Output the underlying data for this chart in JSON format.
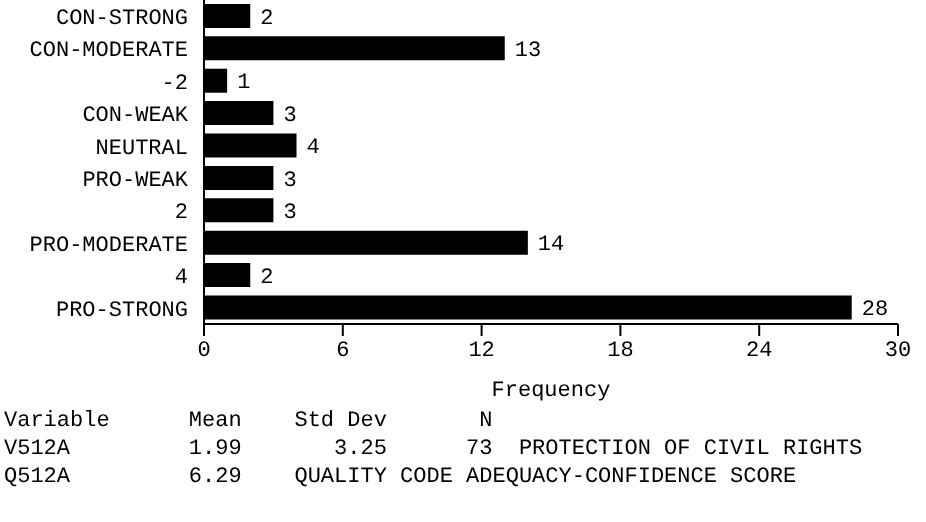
{
  "chart_data": {
    "type": "bar",
    "orientation": "horizontal",
    "categories": [
      "CON-STRONG",
      "CON-MODERATE",
      "-2",
      "CON-WEAK",
      "NEUTRAL",
      "PRO-WEAK",
      "2",
      "PRO-MODERATE",
      "4",
      "PRO-STRONG"
    ],
    "values": [
      2,
      13,
      1,
      3,
      4,
      3,
      3,
      14,
      2,
      28
    ],
    "color": "#000000",
    "xlim": [
      0,
      30
    ],
    "xticks": [
      0,
      6,
      12,
      18,
      24,
      30
    ],
    "xlabel": "Frequency",
    "data_labels": true,
    "grid": false,
    "legend": false,
    "annotations": [
      "Variable      Mean    Std Dev       N",
      "V512A         1.99       3.25      73  PROTECTION OF CIVIL RIGHTS",
      "Q512A         6.29    QUALITY CODE ADEQUACY-CONFIDENCE SCORE"
    ]
  }
}
